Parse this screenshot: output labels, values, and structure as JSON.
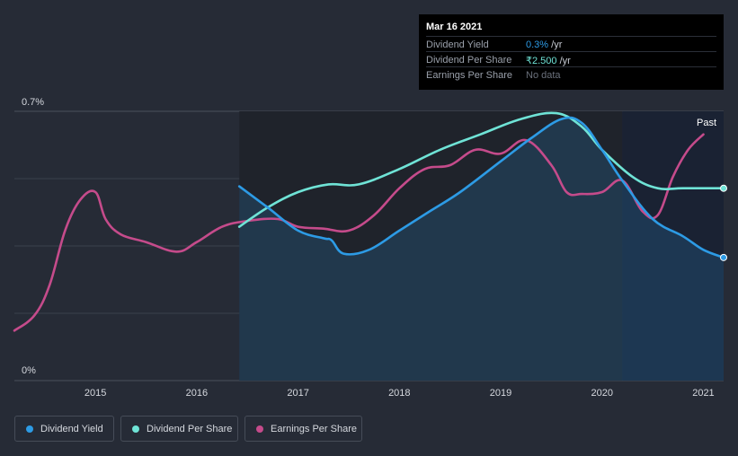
{
  "colors": {
    "background": "#262b36",
    "dividend_yield": "#2d9be5",
    "dividend_per_share": "#6fe3d6",
    "earnings_per_share": "#c54b8b",
    "grid": "#3a404c"
  },
  "tooltip": {
    "date": "Mar 16 2021",
    "rows": [
      {
        "label": "Dividend Yield",
        "value": "0.3%",
        "unit": " /yr",
        "color": "#2d9be5"
      },
      {
        "label": "Dividend Per Share",
        "value": "₹2.500",
        "unit": " /yr",
        "color": "#6fe3d6"
      },
      {
        "label": "Earnings Per Share",
        "value": "No data",
        "unit": "",
        "color": "#6b717c"
      }
    ]
  },
  "legend": [
    {
      "label": "Dividend Yield",
      "color": "#2d9be5"
    },
    {
      "label": "Dividend Per Share",
      "color": "#6fe3d6"
    },
    {
      "label": "Earnings Per Share",
      "color": "#c54b8b"
    }
  ],
  "chart_data": {
    "type": "line",
    "title": "",
    "xlabel": "",
    "ylabel": "",
    "xlim": [
      2014.2,
      2021.2
    ],
    "ylim": [
      0,
      0.7
    ],
    "y_tick_labels": [
      "0.7%",
      "0%"
    ],
    "x_ticks": [
      2015,
      2016,
      2017,
      2018,
      2019,
      2020,
      2021
    ],
    "x_tick_labels": [
      "2015",
      "2016",
      "2017",
      "2018",
      "2019",
      "2020",
      "2021"
    ],
    "past_label": "Past",
    "past_region_start": 2020.2,
    "data_region_start": 2016.42,
    "series": [
      {
        "name": "Dividend Yield",
        "key": "dividend_yield",
        "fill": true,
        "end_marker": true,
        "x": [
          2016.42,
          2016.7,
          2017.0,
          2017.25,
          2017.33,
          2017.45,
          2017.7,
          2018.0,
          2018.3,
          2018.6,
          2019.0,
          2019.3,
          2019.6,
          2019.8,
          2020.0,
          2020.2,
          2020.5,
          2020.8,
          2021.0,
          2021.2
        ],
        "y": [
          0.505,
          0.45,
          0.39,
          0.37,
          0.365,
          0.33,
          0.34,
          0.39,
          0.44,
          0.49,
          0.57,
          0.63,
          0.68,
          0.67,
          0.6,
          0.52,
          0.42,
          0.375,
          0.34,
          0.32
        ]
      },
      {
        "name": "Dividend Per Share",
        "key": "dividend_per_share",
        "fill": false,
        "end_marker": true,
        "x": [
          2016.42,
          2016.7,
          2017.0,
          2017.3,
          2017.6,
          2018.0,
          2018.4,
          2018.8,
          2019.2,
          2019.55,
          2019.8,
          2020.0,
          2020.3,
          2020.55,
          2020.8,
          2021.2
        ],
        "y": [
          0.4,
          0.45,
          0.49,
          0.51,
          0.51,
          0.55,
          0.6,
          0.64,
          0.68,
          0.695,
          0.66,
          0.6,
          0.53,
          0.5,
          0.5,
          0.5
        ]
      },
      {
        "name": "Earnings Per Share",
        "key": "earnings_per_share",
        "fill": false,
        "end_marker": false,
        "x": [
          2014.2,
          2014.4,
          2014.55,
          2014.7,
          2014.85,
          2015.0,
          2015.1,
          2015.25,
          2015.5,
          2015.8,
          2016.0,
          2016.25,
          2016.5,
          2016.8,
          2017.0,
          2017.25,
          2017.5,
          2017.75,
          2018.0,
          2018.25,
          2018.5,
          2018.75,
          2019.0,
          2019.25,
          2019.5,
          2019.65,
          2019.8,
          2020.0,
          2020.2,
          2020.4,
          2020.55,
          2020.7,
          2020.85,
          2021.0
        ],
        "y": [
          0.13,
          0.17,
          0.25,
          0.39,
          0.47,
          0.49,
          0.42,
          0.38,
          0.36,
          0.335,
          0.36,
          0.4,
          0.415,
          0.42,
          0.4,
          0.395,
          0.39,
          0.43,
          0.5,
          0.55,
          0.56,
          0.6,
          0.59,
          0.625,
          0.56,
          0.49,
          0.485,
          0.49,
          0.52,
          0.44,
          0.43,
          0.53,
          0.6,
          0.64
        ]
      }
    ]
  }
}
